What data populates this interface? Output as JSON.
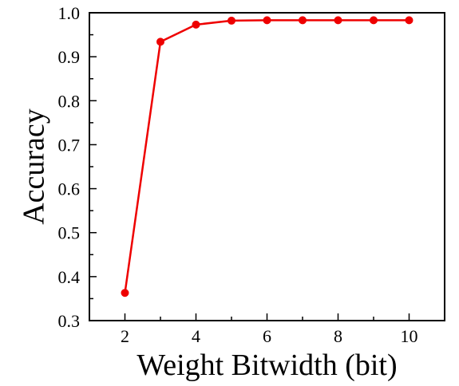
{
  "chart_data": {
    "type": "line",
    "title": "",
    "xlabel": "Weight Bitwidth (bit)",
    "ylabel": "Accuracy",
    "xlim": [
      1,
      11
    ],
    "ylim": [
      0.3,
      1.0
    ],
    "xticks": [
      2,
      4,
      6,
      8,
      10
    ],
    "xtick_labels": [
      "2",
      "4",
      "6",
      "8",
      "10"
    ],
    "yticks": [
      0.3,
      0.4,
      0.5,
      0.6,
      0.7,
      0.8,
      0.9,
      1.0
    ],
    "ytick_labels": [
      "0.3",
      "0.4",
      "0.5",
      "0.6",
      "0.7",
      "0.8",
      "0.9",
      "1.0"
    ],
    "grid": false,
    "legend": "none",
    "series": [
      {
        "color": "#ee0000",
        "marker": "circle",
        "x": [
          2,
          3,
          4,
          5,
          6,
          7,
          8,
          9,
          10
        ],
        "y": [
          0.363,
          0.934,
          0.973,
          0.982,
          0.983,
          0.983,
          0.983,
          0.983,
          0.983
        ]
      }
    ]
  }
}
